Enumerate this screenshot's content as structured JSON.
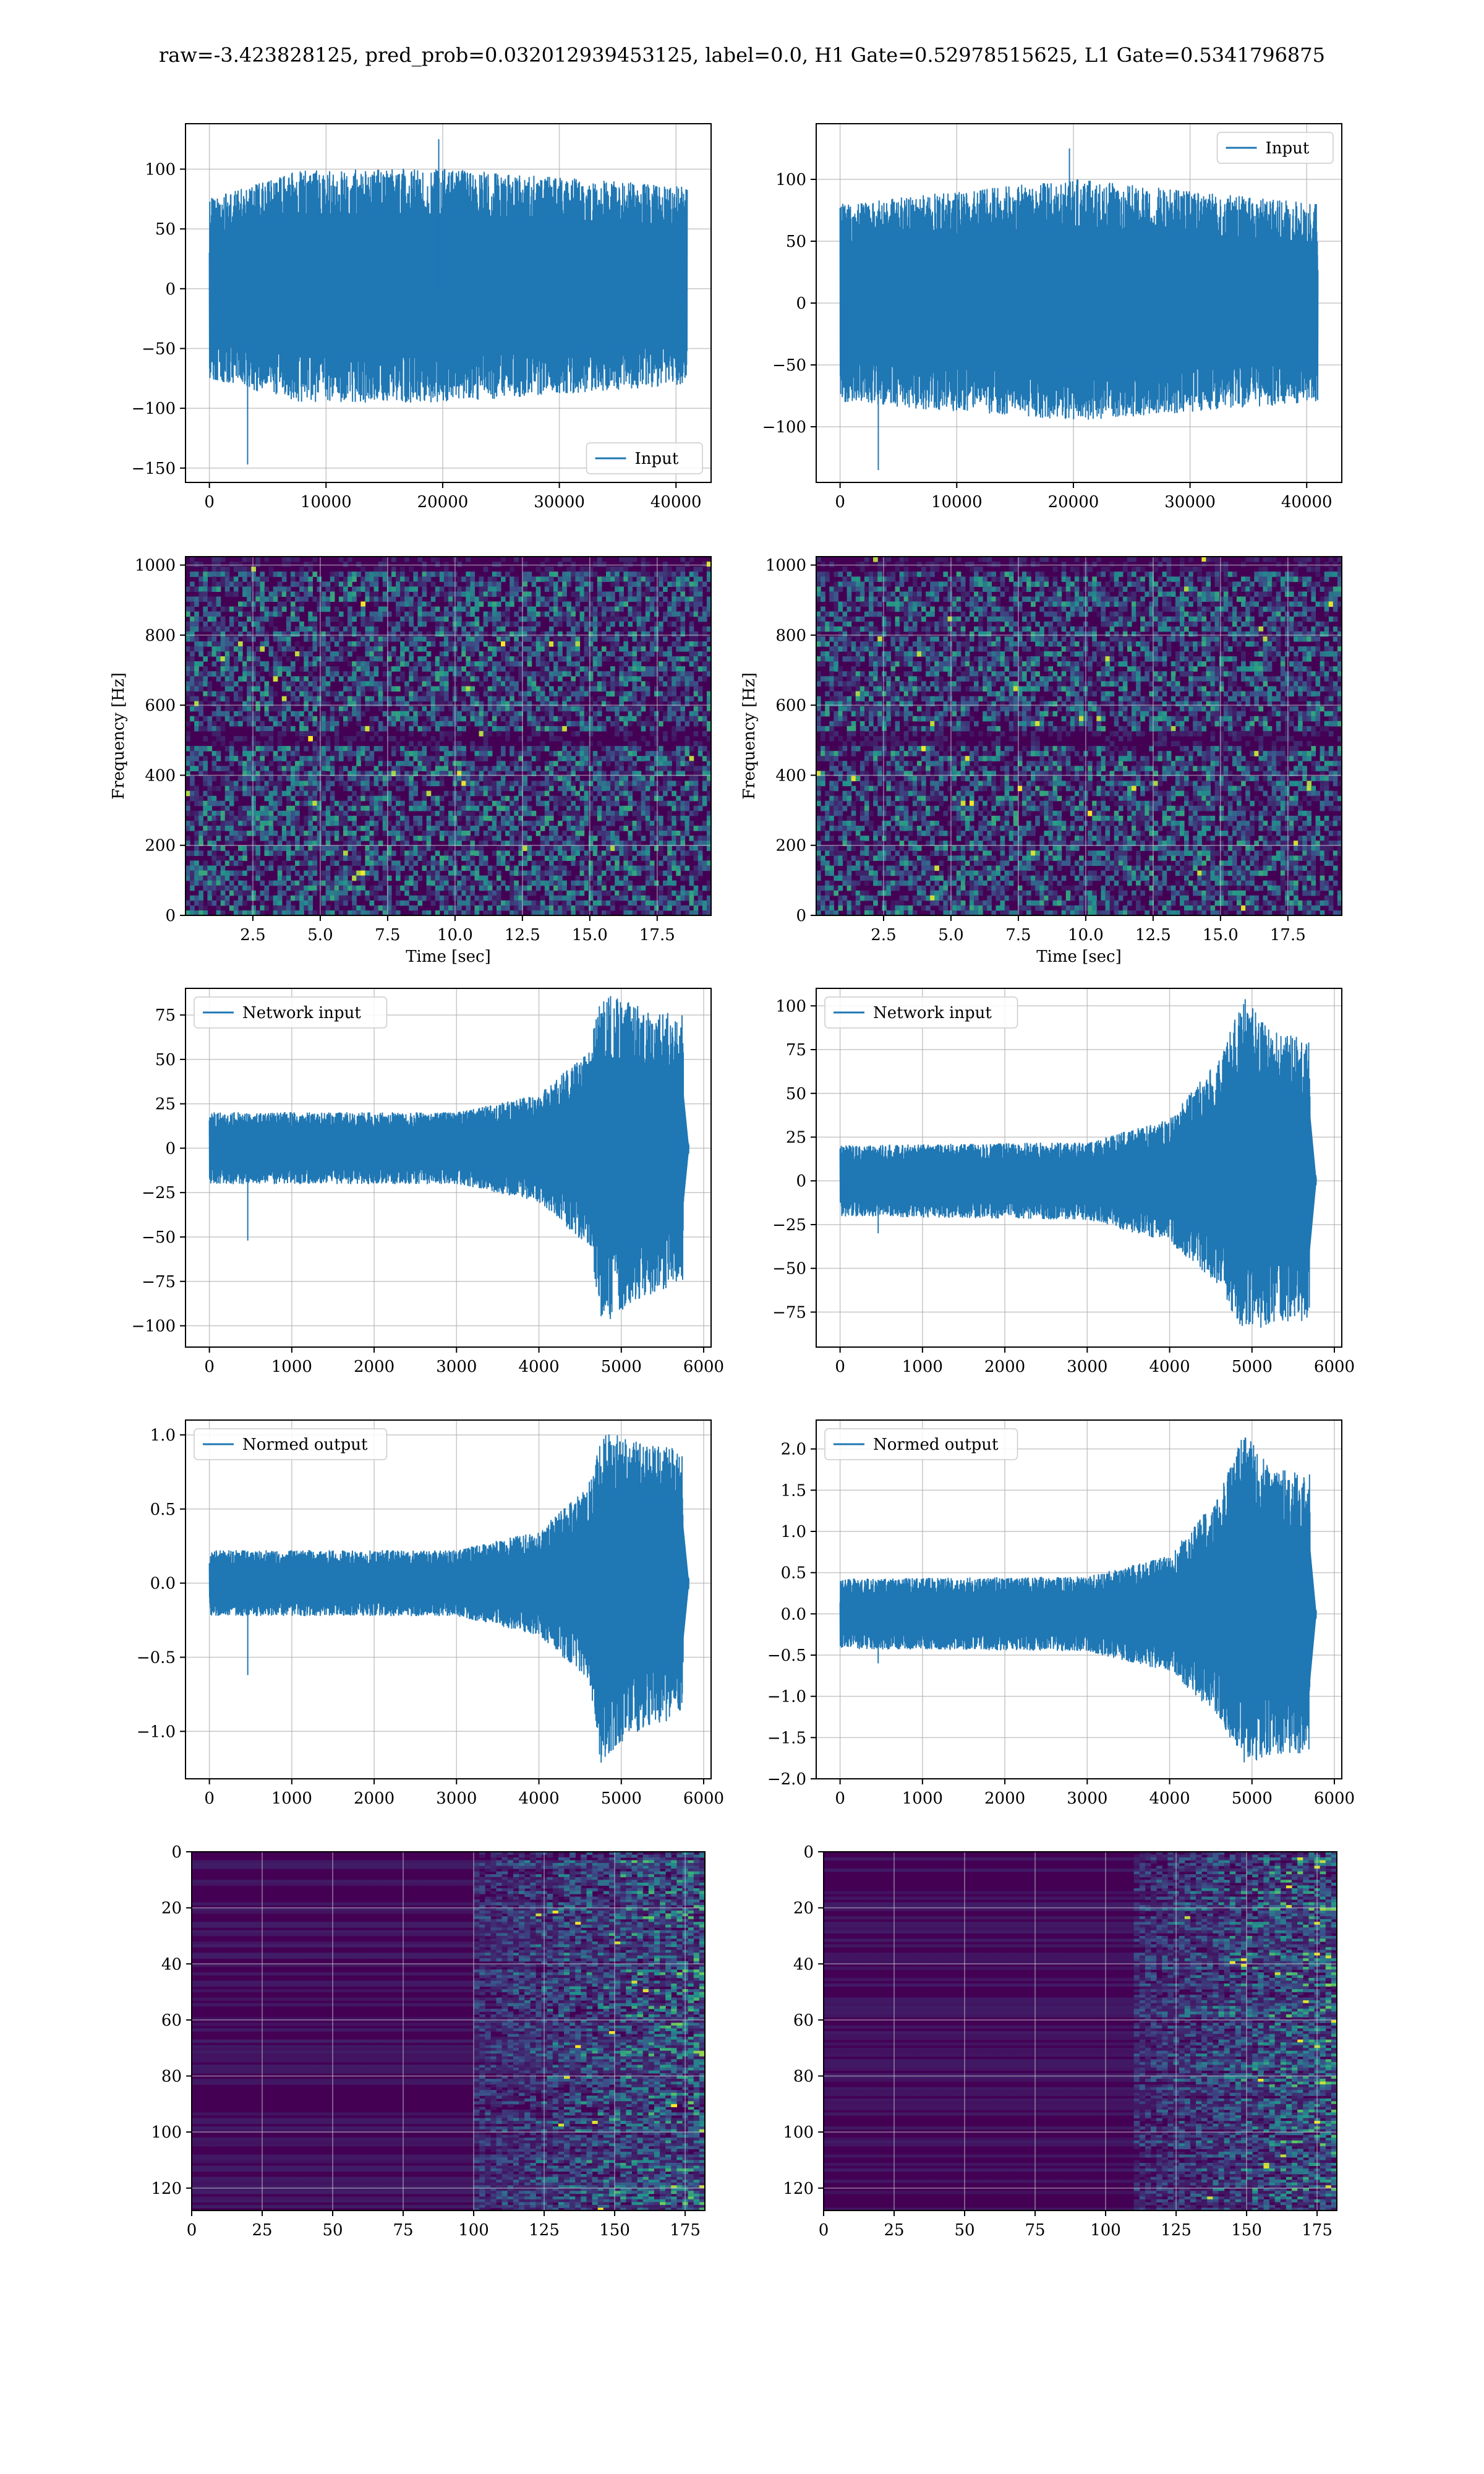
{
  "suptitle": "raw=-3.423828125, pred_prob=0.032012939453125, label=0.0, H1 Gate=0.52978515625, L1 Gate=0.5341796875",
  "colors": {
    "series": "#1f77b4",
    "grid": "#b0b0b0",
    "viridis_low": "#440154",
    "viridis_mid": "#21918c",
    "viridis_high": "#fde725"
  },
  "chart_data": [
    {
      "id": "input-h1",
      "type": "line",
      "title": "",
      "xlabel": "",
      "ylabel": "",
      "xlim": [
        -2048,
        43008
      ],
      "ylim": [
        -162,
        138
      ],
      "xticks": [
        0,
        10000,
        20000,
        30000,
        40000
      ],
      "xtick_labels": [
        "0",
        "10000",
        "20000",
        "30000",
        "40000"
      ],
      "yticks": [
        -150,
        -100,
        -50,
        0,
        50,
        100
      ],
      "ytick_labels": [
        "−150",
        "−100",
        "−50",
        "0",
        "50",
        "100"
      ],
      "grid": true,
      "legend": "lower right",
      "series": [
        {
          "name": "Input",
          "x_range": [
            0,
            40960
          ],
          "envelope": [
            [
              0,
              -75,
              75
            ],
            [
              8000,
              -95,
              100
            ],
            [
              20000,
              -95,
              100
            ],
            [
              40960,
              -80,
              85
            ]
          ],
          "outliers_y": [
            -147,
            125
          ]
        }
      ]
    },
    {
      "id": "input-l1",
      "type": "line",
      "title": "",
      "xlabel": "",
      "ylabel": "",
      "xlim": [
        -2048,
        43008
      ],
      "ylim": [
        -145,
        145
      ],
      "xticks": [
        0,
        10000,
        20000,
        30000,
        40000
      ],
      "xtick_labels": [
        "0",
        "10000",
        "20000",
        "30000",
        "40000"
      ],
      "yticks": [
        -100,
        -50,
        0,
        50,
        100
      ],
      "ytick_labels": [
        "−100",
        "−50",
        "0",
        "50",
        "100"
      ],
      "grid": true,
      "legend": "upper right",
      "series": [
        {
          "name": "Input",
          "x_range": [
            0,
            40960
          ],
          "envelope": [
            [
              0,
              -80,
              80
            ],
            [
              20000,
              -95,
              100
            ],
            [
              40960,
              -80,
              80
            ]
          ],
          "outliers_y": [
            -135,
            125
          ]
        }
      ]
    },
    {
      "id": "spectrogram-h1",
      "type": "heatmap",
      "title": "",
      "xlabel": "Time [sec]",
      "ylabel": "Frequency [Hz]",
      "xlim": [
        0,
        19.5
      ],
      "ylim": [
        0,
        1024
      ],
      "xticks": [
        2.5,
        5.0,
        7.5,
        10.0,
        12.5,
        15.0,
        17.5
      ],
      "xtick_labels": [
        "2.5",
        "5.0",
        "7.5",
        "10.0",
        "12.5",
        "15.0",
        "17.5"
      ],
      "yticks": [
        0,
        200,
        400,
        600,
        800,
        1000
      ],
      "ytick_labels": [
        "0",
        "200",
        "400",
        "600",
        "800",
        "1000"
      ],
      "grid": true,
      "colormap": "viridis",
      "dark_bands_hz": [
        500,
        1000
      ]
    },
    {
      "id": "spectrogram-l1",
      "type": "heatmap",
      "title": "",
      "xlabel": "Time [sec]",
      "ylabel": "Frequency [Hz]",
      "xlim": [
        0,
        19.5
      ],
      "ylim": [
        0,
        1024
      ],
      "xticks": [
        2.5,
        5.0,
        7.5,
        10.0,
        12.5,
        15.0,
        17.5
      ],
      "xtick_labels": [
        "2.5",
        "5.0",
        "7.5",
        "10.0",
        "12.5",
        "15.0",
        "17.5"
      ],
      "yticks": [
        0,
        200,
        400,
        600,
        800,
        1000
      ],
      "ytick_labels": [
        "0",
        "200",
        "400",
        "600",
        "800",
        "1000"
      ],
      "grid": true,
      "colormap": "viridis",
      "dark_bands_hz": [
        500,
        1000
      ]
    },
    {
      "id": "network-input-h1",
      "type": "line",
      "title": "",
      "xlabel": "",
      "ylabel": "",
      "xlim": [
        -290,
        6090
      ],
      "ylim": [
        -112,
        90
      ],
      "xticks": [
        0,
        1000,
        2000,
        3000,
        4000,
        5000,
        6000
      ],
      "xtick_labels": [
        "0",
        "1000",
        "2000",
        "3000",
        "4000",
        "5000",
        "6000"
      ],
      "yticks": [
        -100,
        -75,
        -50,
        -25,
        0,
        25,
        50,
        75
      ],
      "ytick_labels": [
        "−100",
        "−75",
        "−50",
        "−25",
        "0",
        "25",
        "50",
        "75"
      ],
      "grid": true,
      "legend": "upper left",
      "series": [
        {
          "name": "Network input",
          "x_range": [
            0,
            5820
          ],
          "envelope": [
            [
              0,
              -20,
              20
            ],
            [
              3000,
              -20,
              20
            ],
            [
              4000,
              -30,
              30
            ],
            [
              4600,
              -55,
              55
            ],
            [
              4750,
              -100,
              88
            ],
            [
              5200,
              -85,
              80
            ],
            [
              5750,
              -75,
              75
            ],
            [
              5760,
              -5,
              5
            ],
            [
              5820,
              -3,
              3
            ]
          ],
          "outliers_y": [
            -52
          ]
        }
      ]
    },
    {
      "id": "network-input-l1",
      "type": "line",
      "title": "",
      "xlabel": "",
      "ylabel": "",
      "xlim": [
        -290,
        6090
      ],
      "ylim": [
        -95,
        110
      ],
      "xticks": [
        0,
        1000,
        2000,
        3000,
        4000,
        5000,
        6000
      ],
      "xtick_labels": [
        "0",
        "1000",
        "2000",
        "3000",
        "4000",
        "5000",
        "6000"
      ],
      "yticks": [
        -75,
        -50,
        -25,
        0,
        25,
        50,
        75,
        100
      ],
      "ytick_labels": [
        "−75",
        "−50",
        "−25",
        "0",
        "25",
        "50",
        "75",
        "100"
      ],
      "grid": true,
      "legend": "upper left",
      "series": [
        {
          "name": "Network input",
          "x_range": [
            0,
            5780
          ],
          "envelope": [
            [
              0,
              -20,
              20
            ],
            [
              3000,
              -22,
              22
            ],
            [
              4000,
              -35,
              35
            ],
            [
              4600,
              -60,
              70
            ],
            [
              4900,
              -88,
              105
            ],
            [
              5300,
              -80,
              85
            ],
            [
              5700,
              -80,
              80
            ],
            [
              5710,
              -5,
              5
            ],
            [
              5780,
              -3,
              3
            ]
          ],
          "outliers_y": [
            -30
          ]
        }
      ]
    },
    {
      "id": "normed-output-h1",
      "type": "line",
      "title": "",
      "xlabel": "",
      "ylabel": "",
      "xlim": [
        -290,
        6090
      ],
      "ylim": [
        -1.32,
        1.1
      ],
      "xticks": [
        0,
        1000,
        2000,
        3000,
        4000,
        5000,
        6000
      ],
      "xtick_labels": [
        "0",
        "1000",
        "2000",
        "3000",
        "4000",
        "5000",
        "6000"
      ],
      "yticks": [
        -1.0,
        -0.5,
        0.0,
        0.5,
        1.0
      ],
      "ytick_labels": [
        "−1.0",
        "−0.5",
        "0.0",
        "0.5",
        "1.0"
      ],
      "grid": true,
      "legend": "upper left",
      "series": [
        {
          "name": "Normed output",
          "x_range": [
            0,
            5820
          ],
          "envelope": [
            [
              0,
              -0.22,
              0.22
            ],
            [
              3000,
              -0.22,
              0.22
            ],
            [
              4000,
              -0.35,
              0.35
            ],
            [
              4600,
              -0.65,
              0.65
            ],
            [
              4750,
              -1.22,
              1.03
            ],
            [
              5200,
              -1.0,
              0.95
            ],
            [
              5750,
              -0.9,
              0.9
            ],
            [
              5760,
              -0.06,
              0.06
            ],
            [
              5820,
              -0.04,
              0.04
            ]
          ],
          "outliers_y": [
            -0.62
          ]
        }
      ]
    },
    {
      "id": "normed-output-l1",
      "type": "line",
      "title": "",
      "xlabel": "",
      "ylabel": "",
      "xlim": [
        -290,
        6090
      ],
      "ylim": [
        -2.0,
        2.35
      ],
      "xticks": [
        0,
        1000,
        2000,
        3000,
        4000,
        5000,
        6000
      ],
      "xtick_labels": [
        "0",
        "1000",
        "2000",
        "3000",
        "4000",
        "5000",
        "6000"
      ],
      "yticks": [
        -2.0,
        -1.5,
        -1.0,
        -0.5,
        0.0,
        0.5,
        1.0,
        1.5,
        2.0
      ],
      "ytick_labels": [
        "−2.0",
        "−1.5",
        "−1.0",
        "−0.5",
        "0.0",
        "0.5",
        "1.0",
        "1.5",
        "2.0"
      ],
      "grid": true,
      "legend": "upper left",
      "series": [
        {
          "name": "Normed output",
          "x_range": [
            0,
            5780
          ],
          "envelope": [
            [
              0,
              -0.42,
              0.42
            ],
            [
              3000,
              -0.45,
              0.45
            ],
            [
              4000,
              -0.7,
              0.7
            ],
            [
              4600,
              -1.25,
              1.45
            ],
            [
              4900,
              -1.82,
              2.2
            ],
            [
              5300,
              -1.7,
              1.75
            ],
            [
              5700,
              -1.7,
              1.7
            ],
            [
              5710,
              -0.1,
              0.1
            ],
            [
              5780,
              -0.06,
              0.06
            ]
          ],
          "outliers_y": [
            -0.6
          ]
        }
      ]
    },
    {
      "id": "feature-map-h1",
      "type": "heatmap",
      "title": "",
      "xlabel": "",
      "ylabel": "",
      "xlim": [
        0,
        182
      ],
      "ylim": [
        128,
        0
      ],
      "xticks": [
        0,
        25,
        50,
        75,
        100,
        125,
        150,
        175
      ],
      "xtick_labels": [
        "0",
        "25",
        "50",
        "75",
        "100",
        "125",
        "150",
        "175"
      ],
      "yticks": [
        0,
        20,
        40,
        60,
        80,
        100,
        120
      ],
      "ytick_labels": [
        "0",
        "20",
        "40",
        "60",
        "80",
        "100",
        "120"
      ],
      "grid": true,
      "colormap": "viridis",
      "activity_onset_x": 100
    },
    {
      "id": "feature-map-l1",
      "type": "heatmap",
      "title": "",
      "xlabel": "",
      "ylabel": "",
      "xlim": [
        0,
        182
      ],
      "ylim": [
        128,
        0
      ],
      "xticks": [
        0,
        25,
        50,
        75,
        100,
        125,
        150,
        175
      ],
      "xtick_labels": [
        "0",
        "25",
        "50",
        "75",
        "100",
        "125",
        "150",
        "175"
      ],
      "yticks": [
        0,
        20,
        40,
        60,
        80,
        100,
        120
      ],
      "ytick_labels": [
        "0",
        "20",
        "40",
        "60",
        "80",
        "100",
        "120"
      ],
      "grid": true,
      "colormap": "viridis",
      "activity_onset_x": 110
    }
  ]
}
